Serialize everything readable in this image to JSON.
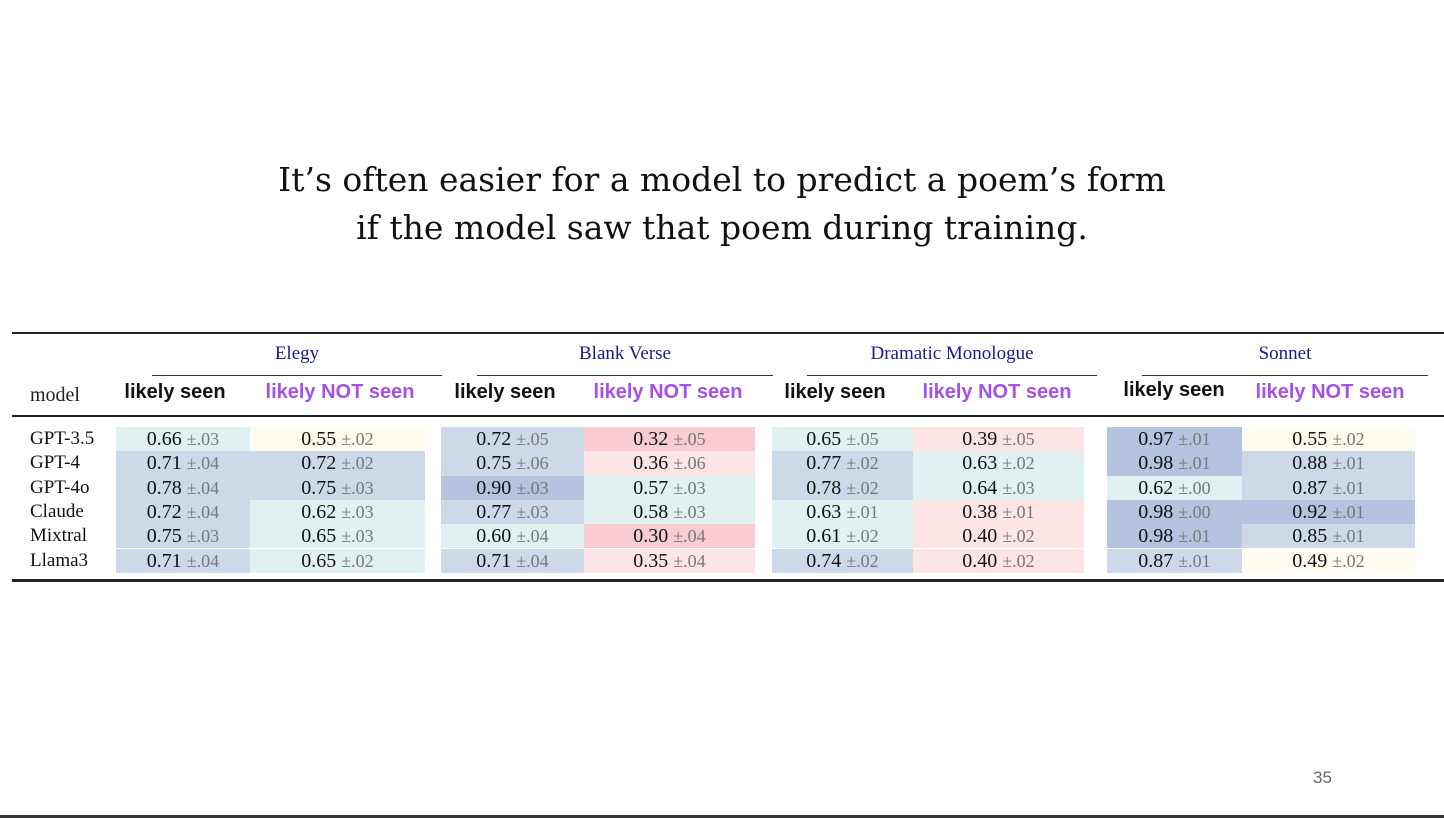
{
  "slide": {
    "title_lines": [
      "It’s often easier for a model to predict a poem’s form",
      "if the model saw that poem during training."
    ],
    "page_number": "35"
  },
  "table": {
    "model_header": "model",
    "groups": [
      {
        "name": "Elegy",
        "seen_label": "likely seen",
        "not_seen_label": "likely NOT seen"
      },
      {
        "name": "Blank Verse",
        "seen_label": "likely seen",
        "not_seen_label": "likely NOT seen"
      },
      {
        "name": "Dramatic Monologue",
        "seen_label": "likely seen",
        "not_seen_label": "likely NOT seen"
      },
      {
        "name": "Sonnet",
        "seen_label": "likely seen",
        "not_seen_label": "likely NOT seen"
      }
    ],
    "colors": {
      "seen_label": "#111111",
      "not_seen_label": "#a550e8",
      "group_title": "#1a1a8c"
    },
    "rows": [
      {
        "model": "GPT-3.5",
        "cells": [
          [
            "0.66",
            "±.03"
          ],
          [
            "0.55",
            "±.02"
          ],
          [
            "0.72",
            "±.05"
          ],
          [
            "0.32",
            "±.05"
          ],
          [
            "0.65",
            "±.05"
          ],
          [
            "0.39",
            "±.05"
          ],
          [
            "0.97",
            "±.01"
          ],
          [
            "0.55",
            "±.02"
          ]
        ]
      },
      {
        "model": "GPT-4",
        "cells": [
          [
            "0.71",
            "±.04"
          ],
          [
            "0.72",
            "±.02"
          ],
          [
            "0.75",
            "±.06"
          ],
          [
            "0.36",
            "±.06"
          ],
          [
            "0.77",
            "±.02"
          ],
          [
            "0.63",
            "±.02"
          ],
          [
            "0.98",
            "±.01"
          ],
          [
            "0.88",
            "±.01"
          ]
        ]
      },
      {
        "model": "GPT-4o",
        "cells": [
          [
            "0.78",
            "±.04"
          ],
          [
            "0.75",
            "±.03"
          ],
          [
            "0.90",
            "±.03"
          ],
          [
            "0.57",
            "±.03"
          ],
          [
            "0.78",
            "±.02"
          ],
          [
            "0.64",
            "±.03"
          ],
          [
            "0.62",
            "±.00"
          ],
          [
            "0.87",
            "±.01"
          ]
        ]
      },
      {
        "model": "Claude",
        "cells": [
          [
            "0.72",
            "±.04"
          ],
          [
            "0.62",
            "±.03"
          ],
          [
            "0.77",
            "±.03"
          ],
          [
            "0.58",
            "±.03"
          ],
          [
            "0.63",
            "±.01"
          ],
          [
            "0.38",
            "±.01"
          ],
          [
            "0.98",
            "±.00"
          ],
          [
            "0.92",
            "±.01"
          ]
        ]
      },
      {
        "model": "Mixtral",
        "cells": [
          [
            "0.75",
            "±.03"
          ],
          [
            "0.65",
            "±.03"
          ],
          [
            "0.60",
            "±.04"
          ],
          [
            "0.30",
            "±.04"
          ],
          [
            "0.61",
            "±.02"
          ],
          [
            "0.40",
            "±.02"
          ],
          [
            "0.98",
            "±.01"
          ],
          [
            "0.85",
            "±.01"
          ]
        ]
      },
      {
        "model": "Llama3",
        "cells": [
          [
            "0.71",
            "±.04"
          ],
          [
            "0.65",
            "±.02"
          ],
          [
            "0.71",
            "±.04"
          ],
          [
            "0.35",
            "±.04"
          ],
          [
            "0.74",
            "±.02"
          ],
          [
            "0.40",
            "±.02"
          ],
          [
            "0.87",
            "±.01"
          ],
          [
            "0.49",
            "±.02"
          ]
        ]
      }
    ]
  }
}
